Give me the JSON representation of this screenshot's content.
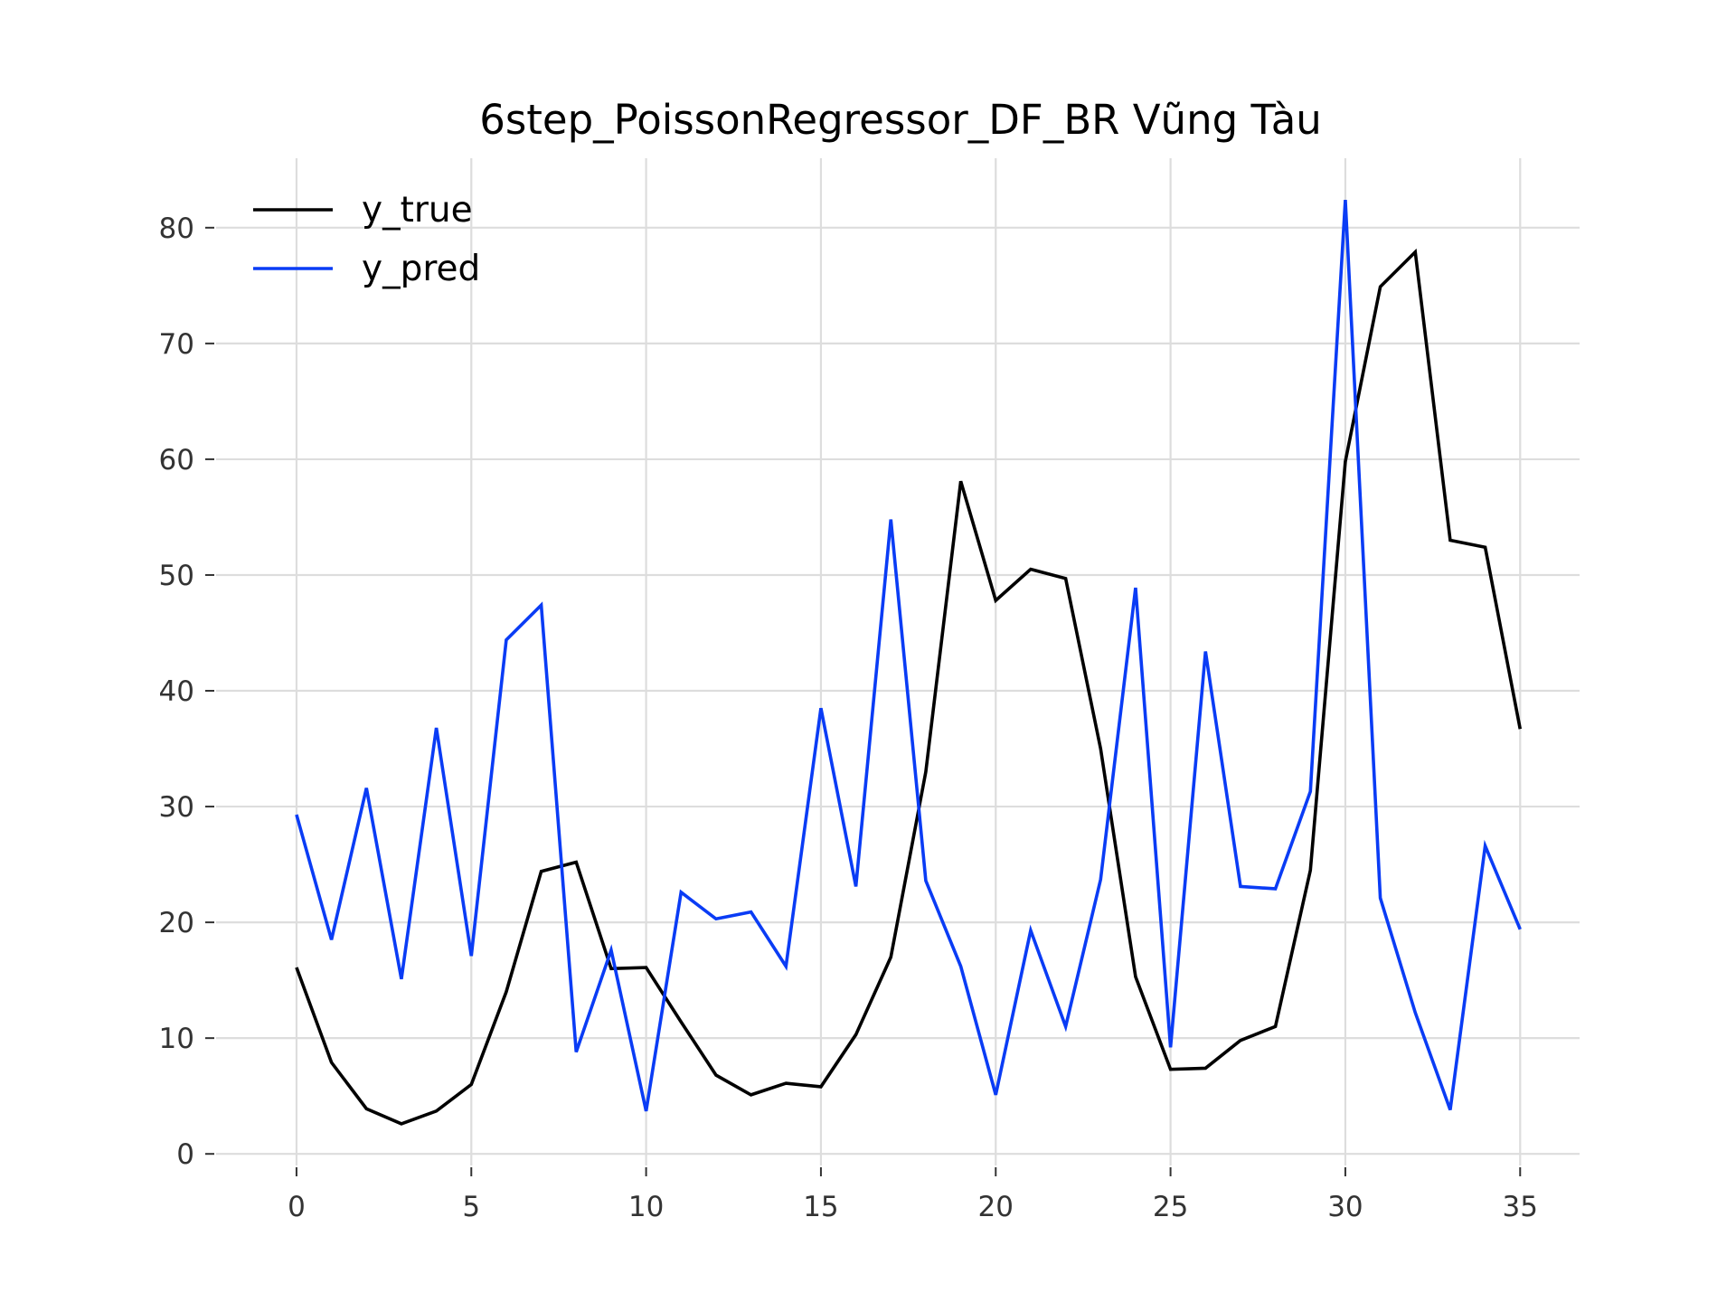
{
  "chart_data": {
    "type": "line",
    "title": "6step_PoissonRegressor_DF_BR Vũng Tàu",
    "xlabel": "",
    "ylabel": "",
    "xlim": [
      -2.3,
      36.7
    ],
    "ylim": [
      -1,
      86
    ],
    "xticks": [
      0,
      5,
      10,
      15,
      20,
      25,
      30,
      35
    ],
    "yticks": [
      0,
      10,
      20,
      30,
      40,
      50,
      60,
      70,
      80
    ],
    "grid": true,
    "legend_position": "top-left",
    "x": [
      0,
      1,
      2,
      3,
      4,
      5,
      6,
      7,
      8,
      9,
      10,
      11,
      12,
      13,
      14,
      15,
      16,
      17,
      18,
      19,
      20,
      21,
      22,
      23,
      24,
      25,
      26,
      27,
      28,
      29,
      30,
      31,
      32,
      33,
      34,
      35
    ],
    "series": [
      {
        "name": "y_true",
        "color": "#000000",
        "values": [
          16.1,
          7.9,
          3.9,
          2.6,
          3.7,
          6.0,
          14.0,
          24.4,
          25.2,
          16.0,
          16.1,
          11.4,
          6.8,
          5.1,
          6.1,
          5.8,
          10.3,
          17.0,
          33.0,
          58.1,
          47.8,
          50.5,
          49.7,
          35.0,
          15.3,
          7.3,
          7.4,
          9.8,
          11.0,
          24.5,
          59.8,
          74.9,
          77.9,
          53.0,
          52.4,
          36.7
        ]
      },
      {
        "name": "y_pred",
        "color": "#0a3cf5",
        "values": [
          29.3,
          18.5,
          31.6,
          15.1,
          36.8,
          17.1,
          44.4,
          47.4,
          8.8,
          17.6,
          3.7,
          22.6,
          20.3,
          20.9,
          16.2,
          38.5,
          23.1,
          54.8,
          23.6,
          16.2,
          5.1,
          19.3,
          11.0,
          23.7,
          48.9,
          9.2,
          43.4,
          23.1,
          22.9,
          31.3,
          82.4,
          22.1,
          12.2,
          3.8,
          26.6,
          19.4
        ]
      }
    ]
  }
}
